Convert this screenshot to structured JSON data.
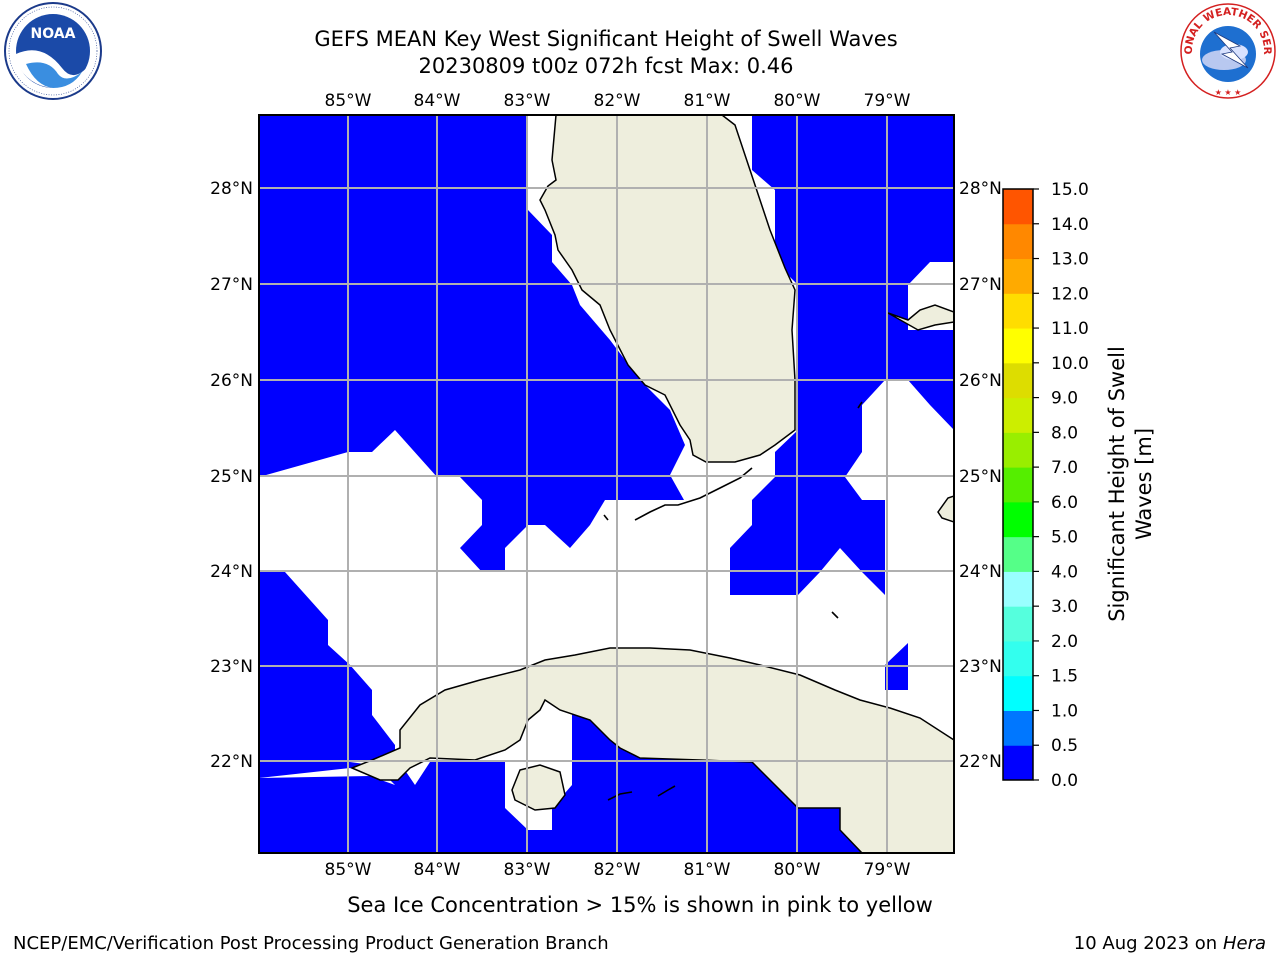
{
  "title": {
    "line1": "GEFS MEAN Key West Significant Height of Swell Waves",
    "line2": "20230809 t00z 072h fcst   Max: 0.46"
  },
  "logos": {
    "left": {
      "text": "NOAA",
      "ring_text": "NATIONAL OCEANIC AND ATMOSPHERIC ADMINISTRATION · U.S. DEPARTMENT OF COMMERCE"
    },
    "right": {
      "ring_text": "NATIONAL WEATHER SERVICE"
    }
  },
  "map": {
    "lon_labels": [
      "85°W",
      "84°W",
      "83°W",
      "82°W",
      "81°W",
      "80°W",
      "79°W"
    ],
    "lat_labels": [
      "28°N",
      "27°N",
      "26°N",
      "25°N",
      "24°N",
      "23°N",
      "22°N"
    ],
    "colors": {
      "swell_low": "#0000ff",
      "land": "#eeeedd",
      "grid": "#b0b0b0",
      "coast": "#000000"
    }
  },
  "colorbar": {
    "label": "Significant Height of Swell Waves [m]",
    "ticks": [
      "0.0",
      "0.5",
      "1.0",
      "1.5",
      "2.0",
      "3.0",
      "4.0",
      "5.0",
      "6.0",
      "7.0",
      "8.0",
      "9.0",
      "10.0",
      "11.0",
      "12.0",
      "13.0",
      "14.0",
      "15.0"
    ],
    "colors": [
      "#0000ff",
      "#0077ff",
      "#00ffff",
      "#33ffee",
      "#55ffdd",
      "#99ffff",
      "#55ff88",
      "#00ff00",
      "#55ee00",
      "#99ee00",
      "#ccee00",
      "#dddd00",
      "#ffff00",
      "#ffdd00",
      "#ffaa00",
      "#ff8800",
      "#ff5500"
    ]
  },
  "footnote": "Sea Ice Concentration > 15% is shown in pink to yellow",
  "footer": {
    "left": "NCEP/EMC/Verification Post Processing Product Generation Branch",
    "right_date": "10 Aug 2023 on",
    "right_machine": "Hera"
  }
}
